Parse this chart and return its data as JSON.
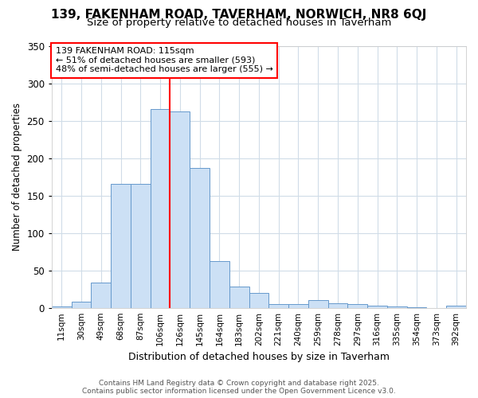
{
  "title": "139, FAKENHAM ROAD, TAVERHAM, NORWICH, NR8 6QJ",
  "subtitle": "Size of property relative to detached houses in Taverham",
  "xlabel": "Distribution of detached houses by size in Taverham",
  "ylabel": "Number of detached properties",
  "categories": [
    "11sqm",
    "30sqm",
    "49sqm",
    "68sqm",
    "87sqm",
    "106sqm",
    "126sqm",
    "145sqm",
    "164sqm",
    "183sqm",
    "202sqm",
    "221sqm",
    "240sqm",
    "259sqm",
    "278sqm",
    "297sqm",
    "316sqm",
    "335sqm",
    "354sqm",
    "373sqm",
    "392sqm"
  ],
  "values": [
    2,
    8,
    34,
    165,
    165,
    265,
    262,
    187,
    62,
    28,
    20,
    5,
    5,
    10,
    6,
    5,
    3,
    2,
    1,
    0,
    3
  ],
  "bar_color": "#cce0f5",
  "bar_edgecolor": "#6699cc",
  "vline_x": 5.5,
  "vline_color": "red",
  "annotation_line1": "139 FAKENHAM ROAD: 115sqm",
  "annotation_line2": "← 51% of detached houses are smaller (593)",
  "annotation_line3": "48% of semi-detached houses are larger (555) →",
  "ylim": [
    0,
    350
  ],
  "yticks": [
    0,
    50,
    100,
    150,
    200,
    250,
    300,
    350
  ],
  "background_color": "#ffffff",
  "grid_color": "#d0dce8",
  "footer_line1": "Contains HM Land Registry data © Crown copyright and database right 2025.",
  "footer_line2": "Contains public sector information licensed under the Open Government Licence v3.0.",
  "title_fontsize": 11,
  "subtitle_fontsize": 9.5,
  "xlabel_fontsize": 9,
  "ylabel_fontsize": 8.5,
  "annot_fontsize": 8,
  "footer_fontsize": 6.5
}
